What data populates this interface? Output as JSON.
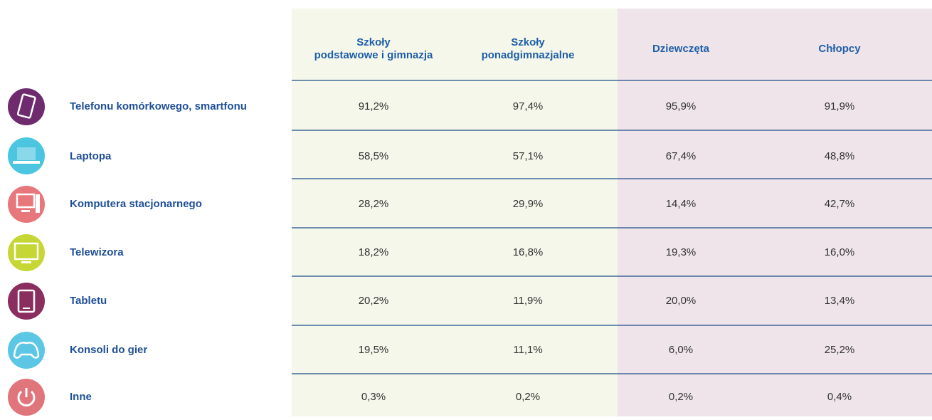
{
  "table": {
    "columns": [
      "Szkoły\npodstawowe i gimnazja",
      "Szkoły\nponadgimnazjalne",
      "Dziewczęta",
      "Chłopcy"
    ],
    "rows": [
      {
        "label": "Telefonu komórkowego, smartfonu",
        "values": [
          "91,2%",
          "97,4%",
          "95,9%",
          "91,9%"
        ]
      },
      {
        "label": "Laptopa",
        "values": [
          "58,5%",
          "57,1%",
          "67,4%",
          "48,8%"
        ]
      },
      {
        "label": "Komputera stacjonarnego",
        "values": [
          "28,2%",
          "29,9%",
          "14,4%",
          "42,7%"
        ]
      },
      {
        "label": "Telewizora",
        "values": [
          "18,2%",
          "16,8%",
          "19,3%",
          "16,0%"
        ]
      },
      {
        "label": "Tabletu",
        "values": [
          "20,2%",
          "11,9%",
          "20,0%",
          "13,4%"
        ]
      },
      {
        "label": "Konsoli do gier",
        "values": [
          "19,5%",
          "11,1%",
          "6,0%",
          "25,2%"
        ]
      },
      {
        "label": "Inne",
        "values": [
          "0,3%",
          "0,2%",
          "0,2%",
          "0,4%"
        ]
      }
    ]
  }
}
